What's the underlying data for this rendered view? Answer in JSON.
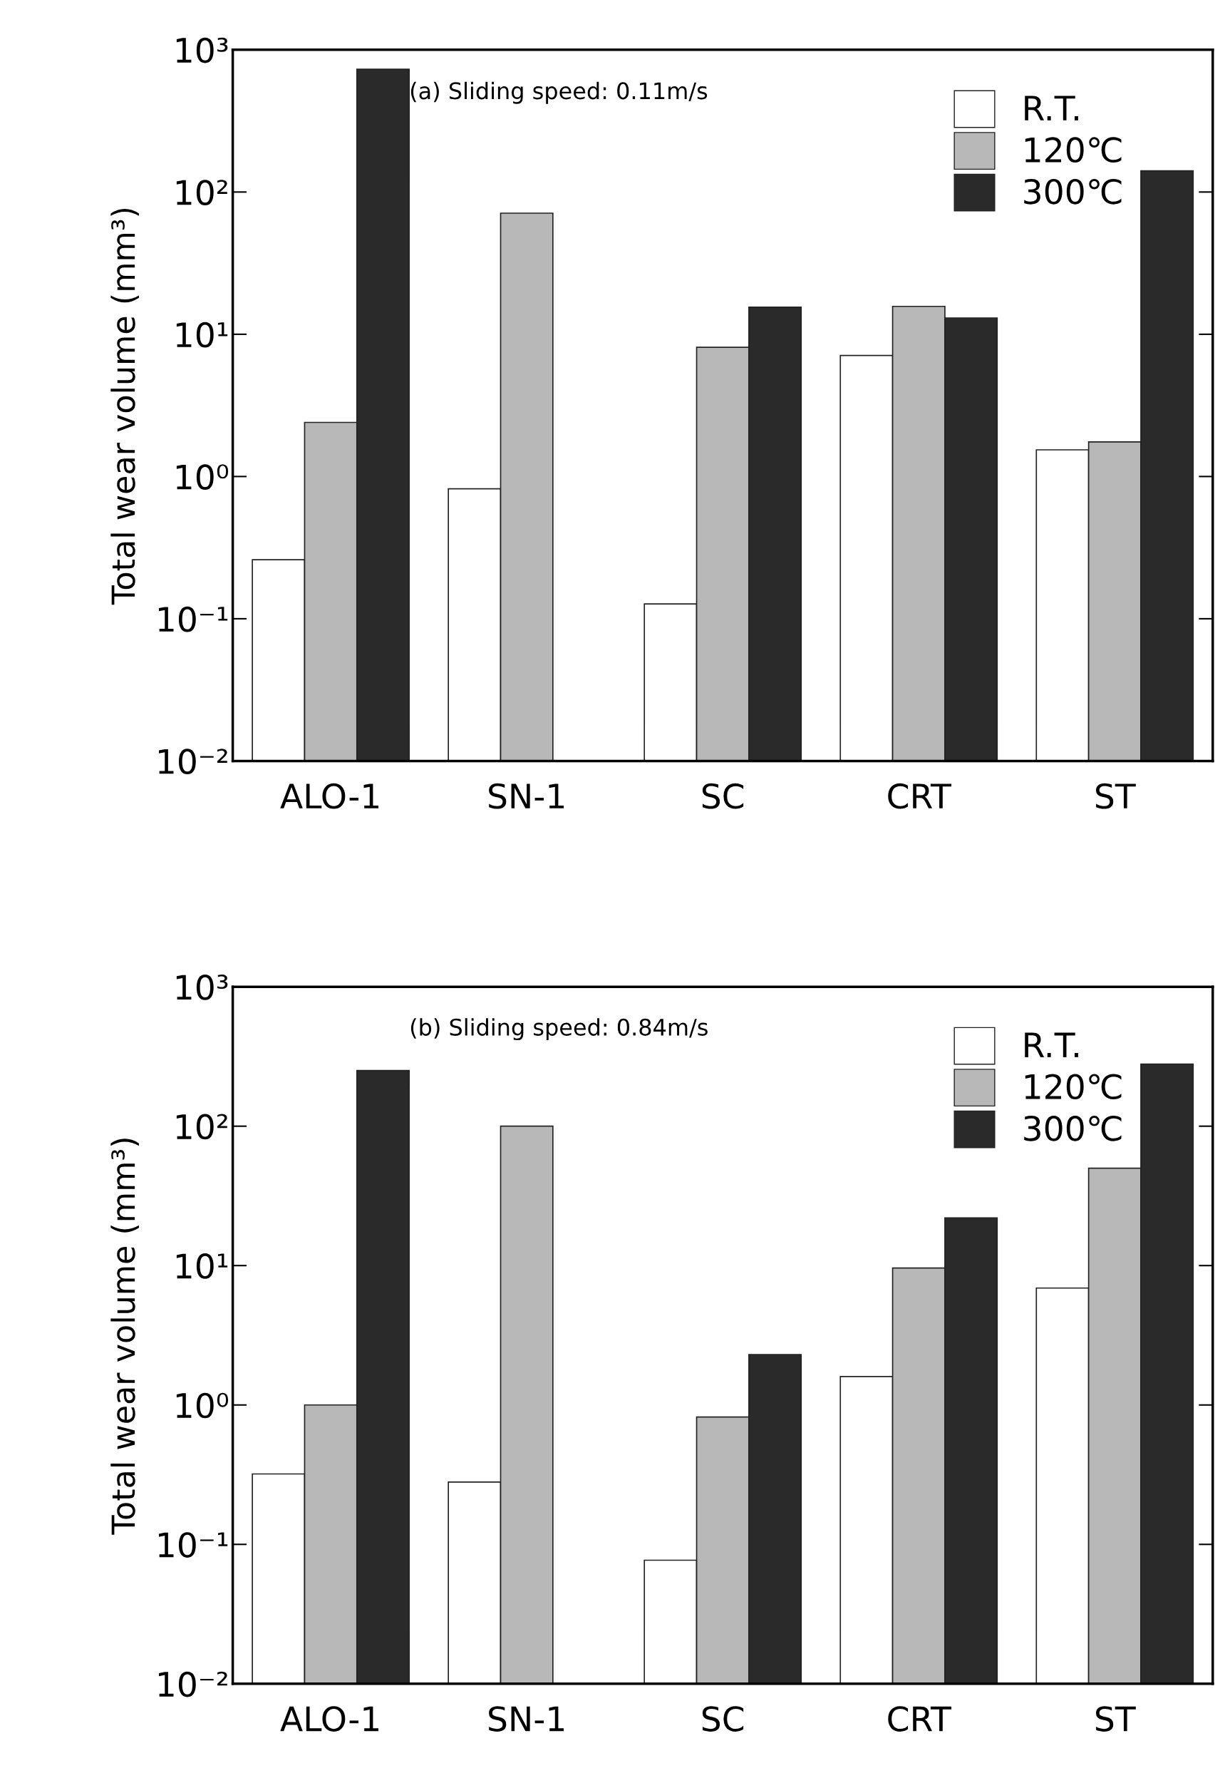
{
  "chart_data": [
    {
      "type": "bar",
      "title": "(a) Sliding speed: 0.11m/s",
      "ylabel": "Total wear volume (mm³)",
      "categories": [
        "ALO-1",
        "SN-1",
        "SC",
        "CRT",
        "ST"
      ],
      "log": true,
      "ylim": [
        0.01,
        1000
      ],
      "yticks": [
        {
          "value": 0.01,
          "label": "10⁻²"
        },
        {
          "value": 0.1,
          "label": "10⁻¹"
        },
        {
          "value": 1,
          "label": "10⁰"
        },
        {
          "value": 10,
          "label": "10¹"
        },
        {
          "value": 100,
          "label": "10²"
        },
        {
          "value": 1000,
          "label": "10³"
        }
      ],
      "legend": "top right",
      "grid": false,
      "series": [
        {
          "name": "R.T.",
          "color": "#ffffff",
          "values": [
            0.26,
            0.82,
            0.127,
            7.1,
            1.54
          ]
        },
        {
          "name": "120℃",
          "color": "#b8b8b8",
          "values": [
            2.4,
            71,
            8.1,
            15.7,
            1.75
          ]
        },
        {
          "name": "300℃",
          "color": "#2a2a2a",
          "values": [
            730,
            null,
            15.5,
            13,
            141
          ]
        }
      ]
    },
    {
      "type": "bar",
      "title": "(b) Sliding speed: 0.84m/s",
      "ylabel": "Total wear volume (mm³)",
      "categories": [
        "ALO-1",
        "SN-1",
        "SC",
        "CRT",
        "ST"
      ],
      "log": true,
      "ylim": [
        0.01,
        1000
      ],
      "yticks": [
        {
          "value": 0.01,
          "label": "10⁻²"
        },
        {
          "value": 0.1,
          "label": "10⁻¹"
        },
        {
          "value": 1,
          "label": "10⁰"
        },
        {
          "value": 10,
          "label": "10¹"
        },
        {
          "value": 100,
          "label": "10²"
        },
        {
          "value": 1000,
          "label": "10³"
        }
      ],
      "legend": "top right",
      "grid": false,
      "series": [
        {
          "name": "R.T.",
          "color": "#ffffff",
          "values": [
            0.32,
            0.28,
            0.077,
            1.6,
            6.9
          ]
        },
        {
          "name": "120℃",
          "color": "#b8b8b8",
          "values": [
            1.0,
            100,
            0.82,
            9.6,
            50
          ]
        },
        {
          "name": "300℃",
          "color": "#2a2a2a",
          "values": [
            251,
            null,
            2.3,
            22,
            279
          ]
        }
      ]
    }
  ]
}
